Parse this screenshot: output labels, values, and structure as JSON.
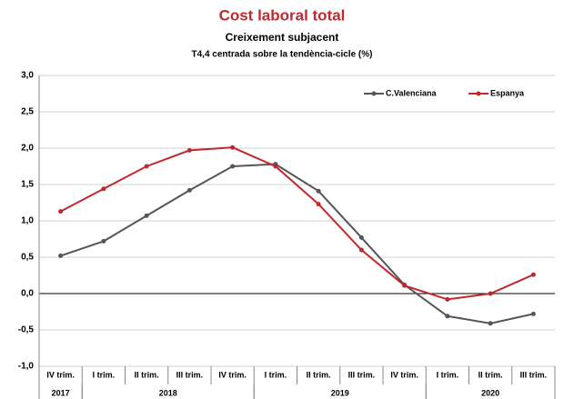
{
  "chart_data": {
    "type": "line",
    "title": "Cost laboral total",
    "subtitle": "Creixement subjacent",
    "subtitle2": "T4,4 centrada sobre la tendència-cicle (%)",
    "categories": [
      "IV trim.",
      "I trim.",
      "II trim.",
      "III trim.",
      "IV trim.",
      "I trim.",
      "II trim.",
      "III trim.",
      "IV trim.",
      "I trim.",
      "II trim.",
      "III trim."
    ],
    "year_groups": [
      {
        "label": "2017",
        "start": 0,
        "end": 0
      },
      {
        "label": "2018",
        "start": 1,
        "end": 4
      },
      {
        "label": "2019",
        "start": 5,
        "end": 8
      },
      {
        "label": "2020",
        "start": 9,
        "end": 11
      }
    ],
    "series": [
      {
        "name": "C.Valenciana",
        "color": "#555555",
        "values": [
          0.52,
          0.72,
          1.07,
          1.42,
          1.75,
          1.78,
          1.41,
          0.77,
          0.12,
          -0.31,
          -0.41,
          -0.28
        ]
      },
      {
        "name": "Espanya",
        "color": "#c0282d",
        "values": [
          1.13,
          1.44,
          1.75,
          1.97,
          2.01,
          1.75,
          1.23,
          0.6,
          0.11,
          -0.08,
          0.0,
          0.26
        ]
      }
    ],
    "ylim": [
      -1,
      3
    ],
    "yticks": [
      {
        "value": -1,
        "label": "-1,0"
      },
      {
        "value": -0.5,
        "label": "-0,5"
      },
      {
        "value": 0,
        "label": "0,0"
      },
      {
        "value": 0.5,
        "label": "0,5"
      },
      {
        "value": 1,
        "label": "1,0"
      },
      {
        "value": 1.5,
        "label": "1,5"
      },
      {
        "value": 2,
        "label": "2,0"
      },
      {
        "value": 2.5,
        "label": "2,5"
      },
      {
        "value": 3,
        "label": "3,0"
      }
    ],
    "grid": true,
    "legend": "top-right"
  }
}
